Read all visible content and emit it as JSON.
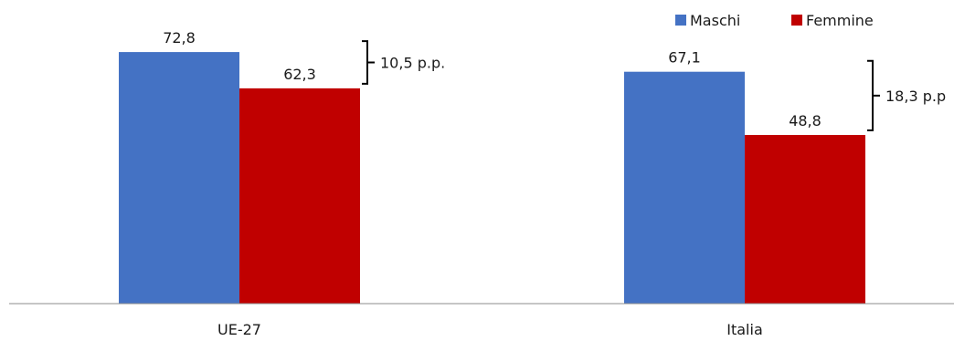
{
  "chart_data": {
    "type": "bar",
    "categories": [
      "UE-27",
      "Italia"
    ],
    "series": [
      {
        "name": "Maschi",
        "values": [
          72.8,
          67.1
        ],
        "labels": [
          "72,8",
          "67,1"
        ],
        "color": "#4472C4"
      },
      {
        "name": "Femmine",
        "values": [
          62.3,
          48.8
        ],
        "labels": [
          "62,3",
          "48,8"
        ],
        "color": "#C00000"
      }
    ],
    "gaps": [
      "10,5 p.p.",
      "18,3 p.p"
    ],
    "ylim": [
      0,
      80
    ],
    "grid": false,
    "legend_position": "top-right"
  }
}
